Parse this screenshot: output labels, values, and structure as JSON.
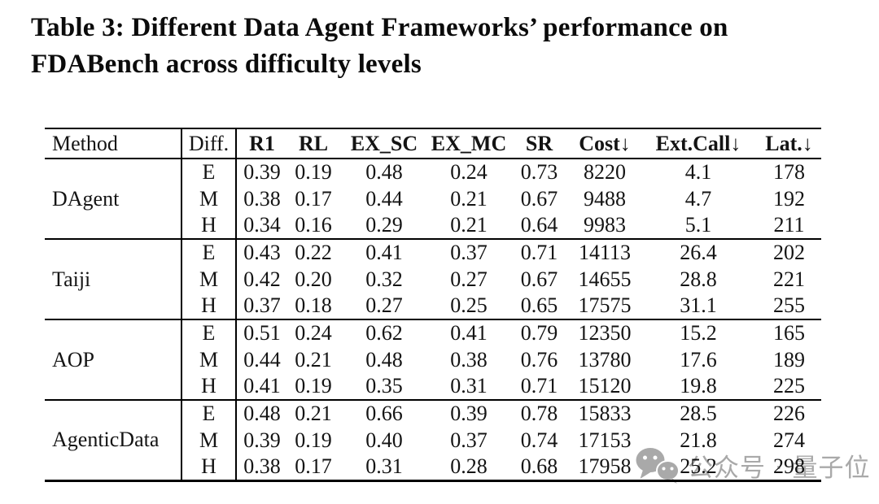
{
  "page": {
    "background": "#ffffff",
    "text_color": "#111111",
    "line_color": "#000000"
  },
  "title": {
    "line1": "Table 3: Different Data Agent Frameworks’ performance on",
    "line2": "FDABench across difficulty levels"
  },
  "table": {
    "headers": [
      "Method",
      "Diff.",
      "R1",
      "RL",
      "EX_SC",
      "EX_MC",
      "SR",
      "Cost↓",
      "Ext.Call↓",
      "Lat.↓"
    ],
    "groups": [
      {
        "method": "DAgent",
        "rows": [
          {
            "diff": "E",
            "values": [
              "0.39",
              "0.19",
              "0.48",
              "0.24",
              "0.73",
              "8220",
              "4.1",
              "178"
            ]
          },
          {
            "diff": "M",
            "values": [
              "0.38",
              "0.17",
              "0.44",
              "0.21",
              "0.67",
              "9488",
              "4.7",
              "192"
            ]
          },
          {
            "diff": "H",
            "values": [
              "0.34",
              "0.16",
              "0.29",
              "0.21",
              "0.64",
              "9983",
              "5.1",
              "211"
            ]
          }
        ]
      },
      {
        "method": "Taiji",
        "rows": [
          {
            "diff": "E",
            "values": [
              "0.43",
              "0.22",
              "0.41",
              "0.37",
              "0.71",
              "14113",
              "26.4",
              "202"
            ]
          },
          {
            "diff": "M",
            "values": [
              "0.42",
              "0.20",
              "0.32",
              "0.27",
              "0.67",
              "14655",
              "28.8",
              "221"
            ]
          },
          {
            "diff": "H",
            "values": [
              "0.37",
              "0.18",
              "0.27",
              "0.25",
              "0.65",
              "17575",
              "31.1",
              "255"
            ]
          }
        ]
      },
      {
        "method": "AOP",
        "rows": [
          {
            "diff": "E",
            "values": [
              "0.51",
              "0.24",
              "0.62",
              "0.41",
              "0.79",
              "12350",
              "15.2",
              "165"
            ]
          },
          {
            "diff": "M",
            "values": [
              "0.44",
              "0.21",
              "0.48",
              "0.38",
              "0.76",
              "13780",
              "17.6",
              "189"
            ]
          },
          {
            "diff": "H",
            "values": [
              "0.41",
              "0.19",
              "0.35",
              "0.31",
              "0.71",
              "15120",
              "19.8",
              "225"
            ]
          }
        ]
      },
      {
        "method": "AgenticData",
        "rows": [
          {
            "diff": "E",
            "values": [
              "0.48",
              "0.21",
              "0.66",
              "0.39",
              "0.78",
              "15833",
              "28.5",
              "226"
            ]
          },
          {
            "diff": "M",
            "values": [
              "0.39",
              "0.19",
              "0.40",
              "0.37",
              "0.74",
              "17153",
              "21.8",
              "274"
            ]
          },
          {
            "diff": "H",
            "values": [
              "0.38",
              "0.17",
              "0.31",
              "0.28",
              "0.68",
              "17958",
              "25.2",
              "298"
            ]
          }
        ]
      }
    ]
  },
  "watermark": {
    "icon": "wechat-icon",
    "text": "公众号 · 量子位",
    "color": "#a9a9a9"
  }
}
